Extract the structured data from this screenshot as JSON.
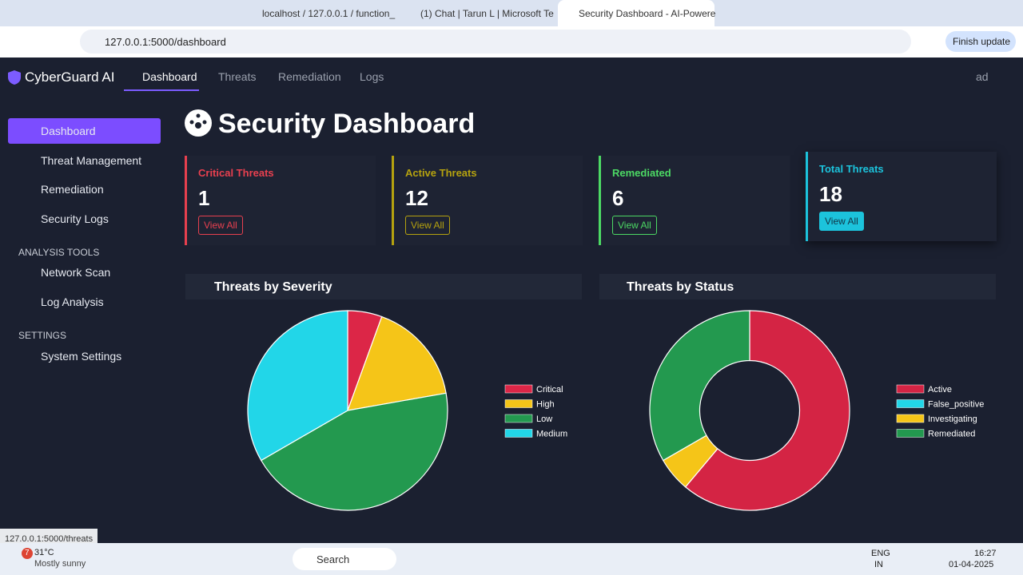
{
  "browser": {
    "tabs": [
      "localhost / 127.0.0.1 / function_",
      "(1) Chat | Tarun L | Microsoft Te",
      "Security Dashboard - AI-Powere"
    ],
    "url": "127.0.0.1:5000/dashboard",
    "update_button": "Finish update",
    "status_url": "127.0.0.1:5000/threats"
  },
  "navbar": {
    "brand": "CyberGuard AI",
    "links": [
      "Dashboard",
      "Threats",
      "Remediation",
      "Logs"
    ],
    "user": "ad"
  },
  "sidebar": {
    "items": [
      "Dashboard",
      "Threat Management",
      "Remediation",
      "Security Logs"
    ],
    "sections": [
      {
        "heading": "ANALYSIS TOOLS",
        "items": [
          "Network Scan",
          "Log Analysis"
        ]
      },
      {
        "heading": "SETTINGS",
        "items": [
          "System Settings"
        ]
      }
    ]
  },
  "page_title": "Security Dashboard",
  "stat_cards": [
    {
      "label": "Critical Threats",
      "value": 1,
      "button": "View All",
      "color": "#e8404f"
    },
    {
      "label": "Active Threats",
      "value": 12,
      "button": "View All",
      "color": "#b5a20f"
    },
    {
      "label": "Remediated",
      "value": 6,
      "button": "View All",
      "color": "#4cd964"
    },
    {
      "label": "Total Threats",
      "value": 18,
      "button": "View All",
      "color": "#1cc3dc"
    }
  ],
  "chart_data": [
    {
      "type": "pie",
      "title": "Threats by Severity",
      "categories": [
        "Critical",
        "High",
        "Low",
        "Medium"
      ],
      "values": [
        1,
        3,
        8,
        6
      ],
      "colors": [
        "#dc2647",
        "#f5c518",
        "#23994f",
        "#22d6e8"
      ]
    },
    {
      "type": "doughnut",
      "title": "Threats by Status",
      "categories": [
        "Active",
        "False_positive",
        "Investigating",
        "Remediated"
      ],
      "values": [
        11,
        0,
        1,
        6
      ],
      "colors": [
        "#d42444",
        "#22d6e8",
        "#f5c518",
        "#23994f"
      ]
    }
  ],
  "taskbar": {
    "weather_badge": "7",
    "weather_temp": "31°C",
    "weather_desc": "Mostly sunny",
    "search": "Search",
    "lang": "ENG",
    "region": "IN",
    "time": "16:27",
    "date": "01-04-2025"
  }
}
